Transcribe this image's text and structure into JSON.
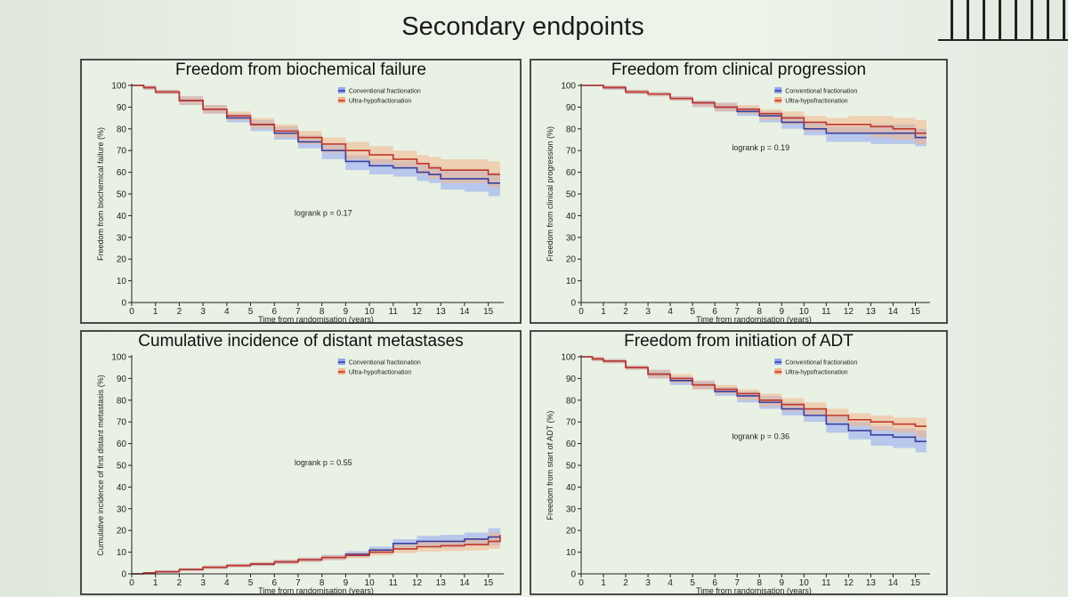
{
  "slide": {
    "title": "Secondary endpoints"
  },
  "colors": {
    "conventional": "#3b3f9e",
    "conventional_band": "#8fa6f2",
    "ultra": "#c0362c",
    "ultra_band": "#f2b48a",
    "axis": "#222222"
  },
  "chart_data": [
    {
      "type": "line",
      "title": "Freedom from biochemical failure",
      "xlabel": "Time from randomisation (years)",
      "ylabel": "Freedom from biochemical failure (%)",
      "xlim": [
        0,
        15.5
      ],
      "ylim": [
        0,
        100
      ],
      "xticks": [
        0,
        1,
        2,
        3,
        4,
        5,
        6,
        7,
        8,
        9,
        10,
        11,
        12,
        13,
        14,
        15
      ],
      "yticks": [
        0,
        10,
        20,
        30,
        40,
        50,
        60,
        70,
        80,
        90,
        100
      ],
      "annotation": "logrank p = 0.17",
      "legend_position": "top-right",
      "series": [
        {
          "name": "Conventional fractionation",
          "x": [
            0,
            0.5,
            1,
            2,
            3,
            4,
            5,
            6,
            7,
            8,
            9,
            10,
            11,
            12,
            12.5,
            13,
            14,
            15,
            15.5
          ],
          "values": [
            100,
            99,
            97,
            93,
            89,
            85,
            82,
            78,
            74,
            70,
            65,
            63,
            62,
            60,
            59,
            57,
            57,
            55,
            55
          ],
          "lower": [
            100,
            98,
            96,
            91,
            87,
            83,
            79,
            75,
            71,
            66,
            61,
            59,
            58,
            56,
            55,
            52,
            51,
            49,
            49
          ],
          "upper": [
            100,
            100,
            98,
            95,
            91,
            87,
            84,
            81,
            77,
            73,
            68,
            66,
            65,
            64,
            63,
            61,
            61,
            60,
            60
          ]
        },
        {
          "name": "Ultra-hypofractionation",
          "x": [
            0,
            0.5,
            1,
            2,
            3,
            4,
            5,
            6,
            7,
            8,
            9,
            10,
            11,
            12,
            12.5,
            13,
            14,
            15,
            15.5
          ],
          "values": [
            100,
            99,
            97,
            93,
            89,
            86,
            82,
            79,
            76,
            73,
            70,
            68,
            66,
            64,
            62,
            61,
            61,
            59,
            59
          ],
          "lower": [
            100,
            98,
            96,
            91,
            87,
            84,
            80,
            76,
            73,
            69,
            66,
            64,
            62,
            59,
            57,
            55,
            55,
            53,
            53
          ],
          "upper": [
            100,
            100,
            98,
            95,
            91,
            88,
            85,
            82,
            79,
            76,
            74,
            72,
            70,
            68,
            67,
            66,
            66,
            65,
            65
          ]
        }
      ]
    },
    {
      "type": "line",
      "title": "Freedom from clinical progression",
      "xlabel": "Time from randomisation (years)",
      "ylabel": "Freedom from clinical progression (%)",
      "xlim": [
        0,
        15.5
      ],
      "ylim": [
        0,
        100
      ],
      "xticks": [
        0,
        1,
        2,
        3,
        4,
        5,
        6,
        7,
        8,
        9,
        10,
        11,
        12,
        13,
        14,
        15
      ],
      "yticks": [
        0,
        10,
        20,
        30,
        40,
        50,
        60,
        70,
        80,
        90,
        100
      ],
      "annotation": "logrank p = 0.19",
      "legend_position": "top-right",
      "series": [
        {
          "name": "Conventional fractionation",
          "x": [
            0,
            1,
            2,
            3,
            4,
            5,
            6,
            7,
            8,
            9,
            10,
            11,
            12,
            13,
            14,
            15,
            15.5
          ],
          "values": [
            100,
            99,
            97,
            96,
            94,
            92,
            90,
            88,
            86,
            83,
            80,
            78,
            78,
            78,
            78,
            76,
            76
          ],
          "lower": [
            100,
            98,
            96,
            95,
            93,
            90,
            88,
            86,
            83,
            80,
            77,
            74,
            74,
            73,
            73,
            72,
            72
          ],
          "upper": [
            100,
            100,
            98,
            97,
            95,
            93,
            92,
            90,
            88,
            86,
            83,
            81,
            81,
            82,
            82,
            80,
            80
          ]
        },
        {
          "name": "Ultra-hypofractionation",
          "x": [
            0,
            1,
            2,
            3,
            4,
            5,
            6,
            7,
            8,
            9,
            10,
            11,
            12,
            13,
            14,
            15,
            15.5
          ],
          "values": [
            100,
            99,
            97,
            96,
            94,
            92,
            90,
            89,
            87,
            85,
            83,
            82,
            82,
            81,
            80,
            78,
            78
          ],
          "lower": [
            100,
            98,
            96,
            95,
            93,
            90,
            88,
            87,
            84,
            82,
            79,
            78,
            78,
            76,
            75,
            73,
            73
          ],
          "upper": [
            100,
            100,
            98,
            97,
            95,
            93,
            92,
            91,
            89,
            88,
            86,
            85,
            86,
            86,
            85,
            84,
            84
          ]
        }
      ]
    },
    {
      "type": "line",
      "title": "Cumulative incidence of distant metastases",
      "xlabel": "Time from randomisation (years)",
      "ylabel": "Cumulative incidence of first distant metastasis (%)",
      "xlim": [
        0,
        15.5
      ],
      "ylim": [
        0,
        100
      ],
      "xticks": [
        0,
        1,
        2,
        3,
        4,
        5,
        6,
        7,
        8,
        9,
        10,
        11,
        12,
        13,
        14,
        15
      ],
      "yticks": [
        0,
        10,
        20,
        30,
        40,
        50,
        60,
        70,
        80,
        90,
        100
      ],
      "annotation": "logrank p = 0.55",
      "legend_position": "top-right",
      "series": [
        {
          "name": "Conventional fractionation",
          "x": [
            0,
            0.5,
            1,
            2,
            3,
            4,
            5,
            6,
            7,
            8,
            9,
            10,
            11,
            12,
            13,
            14,
            15,
            15.5
          ],
          "values": [
            0,
            0.5,
            1,
            2,
            3,
            3.8,
            4.5,
            5.5,
            6.5,
            7.5,
            9,
            11,
            14,
            15,
            15,
            16,
            17,
            17
          ],
          "lower": [
            0,
            0.2,
            0.5,
            1.3,
            2.2,
            3,
            3.6,
            4.5,
            5.4,
            6.3,
            7.6,
            9.4,
            12,
            12.5,
            12,
            13,
            13,
            13
          ],
          "upper": [
            0,
            0.8,
            1.5,
            2.7,
            3.8,
            4.6,
            5.4,
            6.5,
            7.6,
            8.7,
            10.4,
            12.6,
            16,
            17.5,
            18,
            19,
            21,
            21
          ]
        },
        {
          "name": "Ultra-hypofractionation",
          "x": [
            0,
            0.5,
            1,
            2,
            3,
            4,
            5,
            6,
            7,
            8,
            9,
            10,
            11,
            12,
            13,
            14,
            15,
            15.5
          ],
          "values": [
            0,
            0.5,
            1,
            2,
            3,
            3.8,
            4.6,
            5.5,
            6.5,
            7.5,
            8.5,
            10,
            11.5,
            12.5,
            13,
            13.5,
            15,
            18
          ],
          "lower": [
            0,
            0.2,
            0.5,
            1.3,
            2.2,
            3,
            3.7,
            4.5,
            5.4,
            6.3,
            7.2,
            8.5,
            9.6,
            10.3,
            10.5,
            10.8,
            11.5,
            12
          ],
          "upper": [
            0,
            0.8,
            1.5,
            2.7,
            3.8,
            4.6,
            5.5,
            6.5,
            7.6,
            8.7,
            9.8,
            11.5,
            13.4,
            14.7,
            15.5,
            16.5,
            19,
            25
          ]
        }
      ]
    },
    {
      "type": "line",
      "title": "Freedom from initiation of ADT",
      "xlabel": "Time from randomisation (years)",
      "ylabel": "Freedom from start of ADT (%)",
      "xlim": [
        0,
        15.5
      ],
      "ylim": [
        0,
        100
      ],
      "xticks": [
        0,
        1,
        2,
        3,
        4,
        5,
        6,
        7,
        8,
        9,
        10,
        11,
        12,
        13,
        14,
        15
      ],
      "yticks": [
        0,
        10,
        20,
        30,
        40,
        50,
        60,
        70,
        80,
        90,
        100
      ],
      "annotation": "logrank p = 0.36",
      "legend_position": "top-right",
      "series": [
        {
          "name": "Conventional fractionation",
          "x": [
            0,
            0.5,
            1,
            2,
            3,
            4,
            5,
            6,
            7,
            8,
            9,
            10,
            11,
            12,
            13,
            14,
            15,
            15.5
          ],
          "values": [
            100,
            99,
            98,
            95,
            92,
            89,
            87,
            84,
            82,
            79,
            76,
            73,
            69,
            66,
            64,
            63,
            61,
            61
          ],
          "lower": [
            100,
            98,
            97,
            94,
            90,
            87,
            85,
            82,
            79,
            76,
            73,
            70,
            65,
            62,
            59,
            58,
            56,
            56
          ],
          "upper": [
            100,
            100,
            99,
            96,
            94,
            91,
            89,
            86,
            84,
            82,
            79,
            76,
            73,
            70,
            68,
            67,
            66,
            66
          ]
        },
        {
          "name": "Ultra-hypofractionation",
          "x": [
            0,
            0.5,
            1,
            2,
            3,
            4,
            5,
            6,
            7,
            8,
            9,
            10,
            11,
            12,
            13,
            14,
            15,
            15.5
          ],
          "values": [
            100,
            99,
            98,
            95,
            92,
            90,
            87,
            85,
            83,
            80,
            78,
            76,
            73,
            71,
            70,
            69,
            68,
            68
          ],
          "lower": [
            100,
            98,
            97,
            94,
            90,
            88,
            85,
            83,
            80,
            77,
            75,
            73,
            70,
            68,
            66,
            65,
            63,
            63
          ],
          "upper": [
            100,
            100,
            99,
            96,
            94,
            92,
            89,
            87,
            85,
            83,
            81,
            79,
            76,
            74,
            73,
            72,
            72,
            72
          ]
        }
      ]
    }
  ]
}
